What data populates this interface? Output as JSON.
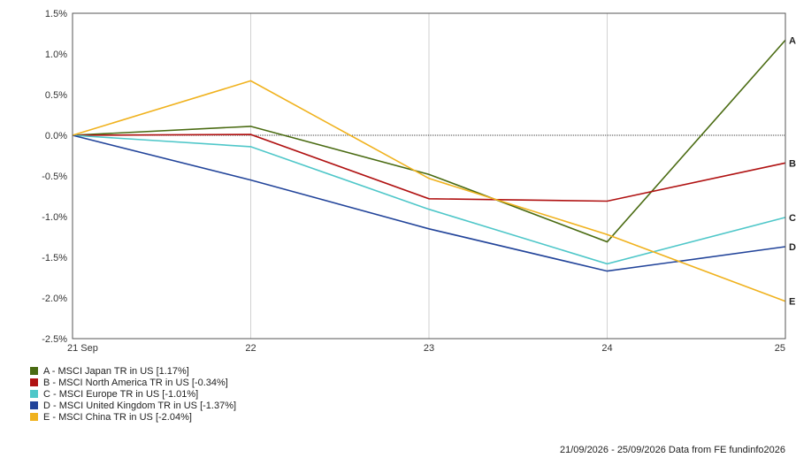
{
  "chart_data": {
    "type": "line",
    "x": [
      "21 Sep",
      "22",
      "23",
      "24",
      "25"
    ],
    "ylim": [
      -2.5,
      1.5
    ],
    "yticks": [
      1.5,
      1.0,
      0.5,
      0.0,
      -0.5,
      -1.0,
      -1.5,
      -2.0,
      -2.5
    ],
    "ytick_labels": [
      "1.5%",
      "1.0%",
      "0.5%",
      "0.0%",
      "-0.5%",
      "-1.0%",
      "-1.5%",
      "-2.0%",
      "-2.5%"
    ],
    "grid": true,
    "legend_position": "bottom-left",
    "series": [
      {
        "key": "A",
        "name": "A - MSCI Japan TR in US [1.17%]",
        "color": "#4a6b12",
        "values": [
          0.0,
          0.11,
          -0.48,
          -1.31,
          1.17
        ]
      },
      {
        "key": "B",
        "name": "B - MSCI North America TR in US [-0.34%]",
        "color": "#b01212",
        "values": [
          0.0,
          0.01,
          -0.78,
          -0.81,
          -0.34
        ]
      },
      {
        "key": "C",
        "name": "C - MSCI Europe TR in US [-1.01%]",
        "color": "#4fc7c9",
        "values": [
          0.0,
          -0.14,
          -0.91,
          -1.58,
          -1.01
        ]
      },
      {
        "key": "D",
        "name": "D - MSCI United Kingdom TR in US [-1.37%]",
        "color": "#22449a",
        "values": [
          0.0,
          -0.55,
          -1.15,
          -1.67,
          -1.37
        ]
      },
      {
        "key": "E",
        "name": "E - MSCI China TR in US [-2.04%]",
        "color": "#f0b21e",
        "values": [
          0.0,
          0.67,
          -0.53,
          -1.22,
          -2.04
        ]
      }
    ]
  },
  "footer": "21/09/2026 - 25/09/2026 Data from FE fundinfo2026"
}
